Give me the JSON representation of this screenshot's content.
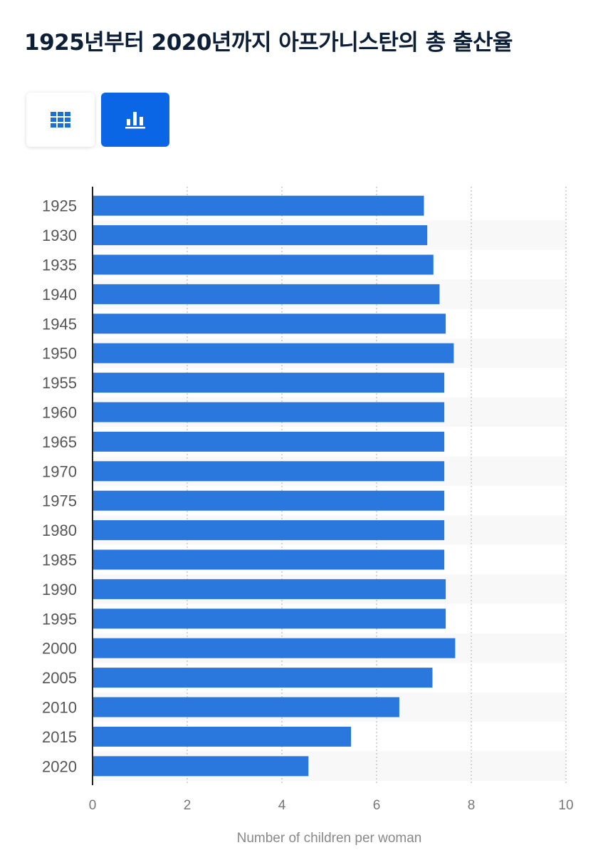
{
  "title": "1925년부터 2020년까지 아프가니스탄의 총 출산율",
  "controls": {
    "table_icon": "table-grid-icon",
    "chart_icon": "bar-chart-icon",
    "active": "chart"
  },
  "colors": {
    "bar": "#2a78de",
    "active_button": "#0a66e4",
    "table_icon": "#1a6fd8",
    "title": "#0d1f36",
    "axis_text": "#777777"
  },
  "chart_data": {
    "type": "bar",
    "orientation": "horizontal",
    "categories": [
      "1925",
      "1930",
      "1935",
      "1940",
      "1945",
      "1950",
      "1955",
      "1960",
      "1965",
      "1970",
      "1975",
      "1980",
      "1985",
      "1990",
      "1995",
      "2000",
      "2005",
      "2010",
      "2015",
      "2020"
    ],
    "values": [
      7.0,
      7.07,
      7.2,
      7.33,
      7.46,
      7.63,
      7.43,
      7.43,
      7.43,
      7.43,
      7.43,
      7.43,
      7.43,
      7.46,
      7.46,
      7.66,
      7.18,
      6.48,
      5.46,
      4.56
    ],
    "xlim": [
      0,
      10
    ],
    "xticks": [
      "0",
      "2",
      "4",
      "6",
      "8",
      "10"
    ],
    "xlabel": "Number of children per woman",
    "ylabel": "",
    "grid": true,
    "legend": false
  }
}
